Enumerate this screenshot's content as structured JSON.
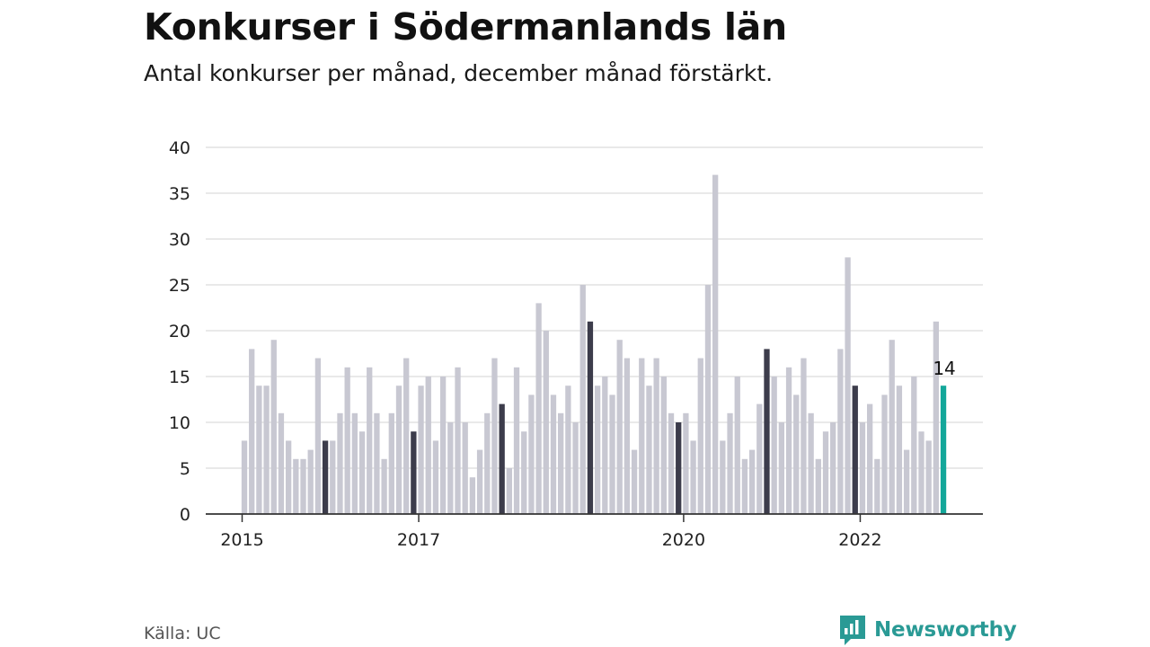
{
  "title": "Konkurser i Södermanlands län",
  "subtitle": "Antal konkurser per månad, december månad förstärkt.",
  "source": "Källa: UC",
  "brand": {
    "name": "Newsworthy",
    "icon": "newsworthy-logo-icon"
  },
  "colors": {
    "bar_default": "#c8c8d2",
    "bar_december": "#3c3c4b",
    "bar_latest": "#13a79a",
    "grid": "#dcdcdc",
    "axis": "#333333",
    "brand": "#2a9a95"
  },
  "chart_data": {
    "type": "bar",
    "title": "Konkurser i Södermanlands län",
    "subtitle": "Antal konkurser per månad, december månad förstärkt.",
    "xlabel": "",
    "ylabel": "",
    "ylim": [
      0,
      40
    ],
    "yticks": [
      0,
      5,
      10,
      15,
      20,
      25,
      30,
      35,
      40
    ],
    "grid": true,
    "start": "2015-01",
    "xtick_labels": [
      {
        "label": "2015",
        "index": 0
      },
      {
        "label": "2017",
        "index": 24
      },
      {
        "label": "2020",
        "index": 60
      },
      {
        "label": "2022",
        "index": 84
      }
    ],
    "highlight": "december",
    "latest_label": "14",
    "values": [
      8,
      18,
      14,
      14,
      19,
      11,
      8,
      6,
      6,
      7,
      17,
      8,
      8,
      11,
      16,
      11,
      9,
      16,
      11,
      6,
      11,
      14,
      17,
      9,
      14,
      15,
      8,
      15,
      10,
      16,
      10,
      4,
      7,
      11,
      17,
      12,
      5,
      16,
      9,
      13,
      23,
      20,
      13,
      11,
      14,
      10,
      25,
      21,
      14,
      15,
      13,
      19,
      17,
      7,
      17,
      14,
      17,
      15,
      11,
      10,
      11,
      8,
      17,
      25,
      37,
      8,
      11,
      15,
      6,
      7,
      12,
      18,
      15,
      10,
      16,
      13,
      17,
      11,
      6,
      9,
      10,
      18,
      28,
      14,
      10,
      12,
      6,
      13,
      19,
      14,
      7,
      15,
      9,
      8,
      21,
      14
    ]
  }
}
